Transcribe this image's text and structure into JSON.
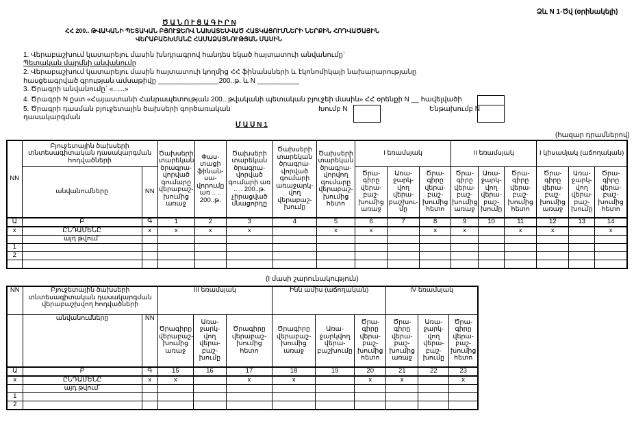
{
  "form_code": "Ձև N 1-Ծվ (օրինակելի)",
  "title": "Ծ Ա Ն Ո Ւ Ց Ա Գ Ի Ր    N",
  "subtitle_1": "ՀՀ 200.. ԹՎԱԿԱՆԻ ՊԵՏԱԿԱՆ ԲՅՈՒՋԵՈՎ ՆԱԽԱՏԵՍՎԱԾ ՀԱՏԿԱՑՈՒՄՆԵՐԻ ՆԵՐՔԻՆ ՀՈԴՎԱԾԱՅԻՆ",
  "subtitle_2": "ՎԵՐԱԲԱՇԽՄԱՆԸ ՀԱՄԱՁԱՅՆՈՒԹՅԱՆ ՄԱՍԻՆ",
  "items": {
    "i1": "1. Վերաբաշխում կատարելու մասին խնդրագրով հանդես եկած հայտատուի անվանումը`",
    "i1_value": "Պետական մարմնի անվանումը",
    "i2": "2.  Վերաբաշխում կատարելու մասին հայտատուի կողմից ՀՀ ֆինանսների և էկոնոմիկայի նախարարությանը",
    "i2b": "հասցեագրված գրության ամսաթիվը ________________200..թ. և N ___________",
    "i3": "3. Ծրագրի անվանումը` «......»",
    "i4": "4. Ծրագրի N ըստ «Հայաստանի Հանրապետության 200.. թվականի պետական բյուջեի մասին» ՀՀ օրենքի N __ հավելվածի",
    "i5": "5. Ծրագրի դասման բյուջետային ծախսերի գործառական",
    "i5b": "դասակարգման",
    "group_label": "Խումբ N",
    "subgroup_label": "Ենթախումբ N"
  },
  "part_title": "Մ Ա Ս   N 1",
  "units": "(հազար դրամներով)",
  "continuation": "(I մասի շարունակություն)",
  "table1": {
    "nn": "NN",
    "articles_header": "Բյուջետային ծախսերի տնտեսագիտական դասակարգման հոդվածների",
    "names": "անվանումները",
    "nn2": "NN",
    "cols": [
      "Ծախսերի տարեկան ծրագրա-վորված գումարը վերաբաշ-խումից առաջ",
      "Փաս-տացի ֆինան-սա-վորումը առ .. .. 200..թ.",
      "Ծախսերի տարեկան ծրագրա-վորված գումարի առ .. .. 200..թ. չիրացված մնացորդը",
      "Ծախսերի տարեկան ծրագրա-վորված գումարի առաջարկ-վող վերաբաշ-խումը",
      "Ծախսերի տարեկան ծրագրա-վորվող գումարը վերաբաշ-խումից հետո"
    ],
    "groups": [
      "I եռամսյակ",
      "II եռամսյակ",
      "I կիսամյակ (աճողական)"
    ],
    "subcols": [
      [
        "Ծրա-գիրը վերա-բաշ-խումից առաջ",
        "Առա-ջարկ-վող վերա-բաշխու-մը",
        "Ծրա-գիրը վերա-բաշ-խումից հետո"
      ],
      [
        "Ծրա-գիրը վերա-բաշ-խումից առաջ",
        "Առա-ջարկ-վող վերա-բաշ-խումը",
        "Ծրա-գիրը վերա-բաշ-խումից հետո"
      ],
      [
        "Ծրա-գիրը վերա-բաշ-խումից առաջ",
        "Առա-ջարկ-վող վերա-բաշ-խումը",
        "Ծրա-գիրը վերա-բաշ-խումից հետո"
      ]
    ],
    "index_row": [
      "Ա",
      "Բ",
      "Գ",
      "1",
      "2",
      "3",
      "4",
      "5",
      "6",
      "7",
      "8",
      "9",
      "10",
      "11",
      "12",
      "13",
      "14"
    ],
    "total_row": [
      "x",
      "ԸՆԴԱՄԵՆԸ",
      "x",
      "x",
      "x",
      "x",
      "",
      "x",
      "x",
      "",
      "x",
      "x",
      "",
      "x",
      "x",
      "",
      "x"
    ],
    "including": "այդ թվում`",
    "rows": [
      "1",
      "2",
      ""
    ]
  },
  "table2": {
    "nn": "NN",
    "articles_header": "Բյուջետային ծախսերի տնտեսագիտական դասակարգման վերաբաշխվող հոդվածների",
    "names": "անվանումները",
    "nn2": "NN",
    "groups": [
      "III եռամսյակ",
      "Ինն ամիս (աճողական)",
      "IV եռամսյակ"
    ],
    "subcols": [
      [
        "Ծրագիրը վերաբաշ-խումից առաջ",
        "Առա-ջարկ-վող վերա-բաշ-խումը",
        "Ծրագիրը վերաբաշ-խումից հետո"
      ],
      [
        "Ծրագիրը վերաբաշ-խումից առաջ",
        "Առա-ջարկվող վերա-բաշխումը",
        "Ծրա-գիրը վերա-բաշ-խումից հետո"
      ],
      [
        "Ծրա-գիրը վերա-բաշ-խումից առաջ",
        "Առա-ջարկ-վող վերա-բաշ-խումը",
        "Ծրա-գիրը վերա-բաշ-խումից հետո"
      ]
    ],
    "index_row": [
      "Ա",
      "Բ",
      "Գ",
      "15",
      "16",
      "17",
      "18",
      "19",
      "20",
      "21",
      "22",
      "23"
    ],
    "total_row": [
      "x",
      "ԸՆԴԱՄԵՆԸ",
      "x",
      "x",
      "",
      "x",
      "x",
      "",
      "x",
      "x",
      "",
      "x"
    ],
    "including": "այդ թվում`",
    "rows": [
      "1",
      "2"
    ]
  }
}
